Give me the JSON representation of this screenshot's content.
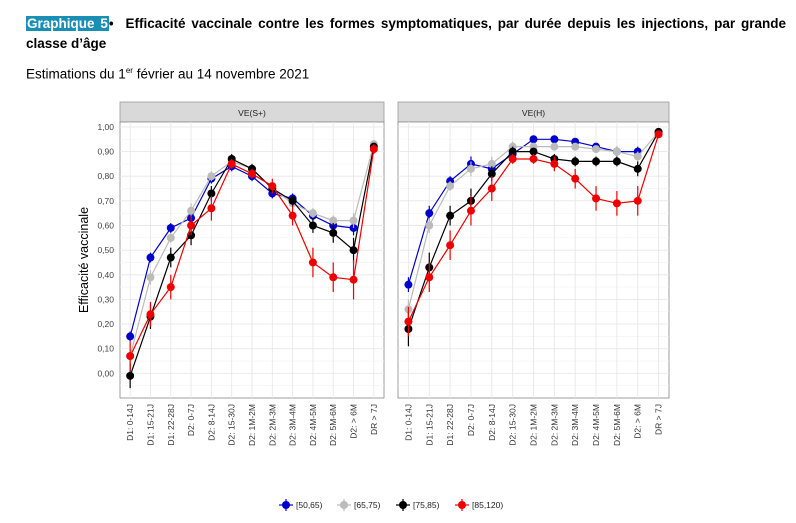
{
  "header": {
    "label": "Graphique 5",
    "bullet": "•",
    "title": "Efficacité vaccinale contre les formes symptomatiques, par durée depuis les injections, par grande classe d’âge"
  },
  "subtitle": {
    "prefix": "Estimations du 1",
    "sup": "er",
    "suffix": " février au 14 novembre 2021"
  },
  "colors": {
    "grid": "#e8e8e8",
    "strip": "#d9d9d9"
  },
  "chart_data": {
    "type": "line",
    "ylabel": "Efficacité vaccinale",
    "ylim": [
      -0.1,
      1.02
    ],
    "yticks": [
      0.0,
      0.1,
      0.2,
      0.3,
      0.4,
      0.5,
      0.6,
      0.7,
      0.8,
      0.9,
      1.0
    ],
    "ytick_labels": [
      "0,00",
      "0,10",
      "0,20",
      "0,30",
      "0,40",
      "0,50",
      "0,60",
      "0,70",
      "0,80",
      "0,90",
      "1,00"
    ],
    "categories": [
      "D1: 0-14J",
      "D1: 15-21J",
      "D1: 22-28J",
      "D2: 0-7J",
      "D2: 8-14J",
      "D2: 15-30J",
      "D2: 1M-2M",
      "D2: 2M-3M",
      "D2: 3M-4M",
      "D2: 4M-5M",
      "D2: 5M-6M",
      "D2: > 6M",
      "DR > 7J"
    ],
    "legend_position": "bottom",
    "grid": true,
    "panels": [
      {
        "title": "VE(S+)",
        "series": [
          {
            "name": "[50,65)",
            "color": "#0000cc",
            "values": [
              0.15,
              0.47,
              0.59,
              0.63,
              0.79,
              0.84,
              0.8,
              0.73,
              0.71,
              0.64,
              0.6,
              0.59,
              null
            ],
            "lo": [
              0.13,
              0.45,
              0.57,
              0.6,
              0.77,
              0.82,
              0.78,
              0.71,
              0.69,
              0.62,
              0.58,
              0.56,
              null
            ],
            "hi": [
              0.17,
              0.49,
              0.61,
              0.66,
              0.81,
              0.86,
              0.82,
              0.75,
              0.73,
              0.66,
              0.62,
              0.62,
              null
            ]
          },
          {
            "name": "[65,75)",
            "color": "#bbbbbb",
            "values": [
              0.07,
              0.39,
              0.55,
              0.66,
              0.8,
              0.86,
              0.83,
              0.75,
              0.69,
              0.65,
              0.62,
              0.62,
              0.93
            ],
            "lo": [
              0.04,
              0.36,
              0.53,
              0.63,
              0.78,
              0.84,
              0.81,
              0.73,
              0.67,
              0.63,
              0.6,
              0.59,
              0.92
            ],
            "hi": [
              0.1,
              0.42,
              0.57,
              0.69,
              0.82,
              0.88,
              0.85,
              0.77,
              0.71,
              0.67,
              0.64,
              0.65,
              0.94
            ]
          },
          {
            "name": "[75,85)",
            "color": "#000000",
            "values": [
              -0.01,
              0.23,
              0.47,
              0.56,
              0.73,
              0.87,
              0.83,
              0.75,
              0.7,
              0.6,
              0.57,
              0.5,
              0.92
            ],
            "lo": [
              -0.06,
              0.18,
              0.43,
              0.52,
              0.7,
              0.85,
              0.81,
              0.73,
              0.68,
              0.57,
              0.53,
              0.45,
              0.91
            ],
            "hi": [
              0.04,
              0.28,
              0.51,
              0.6,
              0.76,
              0.89,
              0.85,
              0.77,
              0.72,
              0.63,
              0.61,
              0.55,
              0.93
            ]
          },
          {
            "name": "[85,120)",
            "color": "#ee0000",
            "values": [
              0.07,
              0.24,
              0.35,
              0.6,
              0.67,
              0.85,
              0.81,
              0.76,
              0.64,
              0.45,
              0.39,
              0.38,
              0.91
            ],
            "lo": [
              0.01,
              0.19,
              0.3,
              0.56,
              0.62,
              0.83,
              0.79,
              0.73,
              0.6,
              0.39,
              0.33,
              0.3,
              0.89
            ],
            "hi": [
              0.13,
              0.29,
              0.4,
              0.64,
              0.72,
              0.87,
              0.83,
              0.79,
              0.68,
              0.51,
              0.45,
              0.46,
              0.93
            ]
          }
        ]
      },
      {
        "title": "VE(H)",
        "series": [
          {
            "name": "[50,65)",
            "color": "#0000cc",
            "values": [
              0.36,
              0.65,
              0.78,
              0.85,
              0.83,
              0.89,
              0.95,
              0.95,
              0.94,
              0.92,
              0.9,
              0.9,
              null
            ],
            "lo": [
              0.33,
              0.62,
              0.76,
              0.82,
              0.8,
              0.87,
              0.94,
              0.94,
              0.93,
              0.91,
              0.88,
              0.88,
              null
            ],
            "hi": [
              0.39,
              0.68,
              0.8,
              0.88,
              0.86,
              0.91,
              0.96,
              0.96,
              0.95,
              0.93,
              0.92,
              0.92,
              null
            ]
          },
          {
            "name": "[65,75)",
            "color": "#bbbbbb",
            "values": [
              0.26,
              0.6,
              0.76,
              0.83,
              0.85,
              0.92,
              0.92,
              0.92,
              0.92,
              0.91,
              0.9,
              0.88,
              0.98
            ],
            "lo": [
              0.22,
              0.57,
              0.74,
              0.8,
              0.82,
              0.9,
              0.91,
              0.91,
              0.91,
              0.9,
              0.88,
              0.86,
              0.97
            ],
            "hi": [
              0.3,
              0.63,
              0.78,
              0.86,
              0.88,
              0.94,
              0.93,
              0.93,
              0.93,
              0.92,
              0.92,
              0.9,
              0.99
            ]
          },
          {
            "name": "[75,85)",
            "color": "#000000",
            "values": [
              0.18,
              0.43,
              0.64,
              0.7,
              0.81,
              0.9,
              0.9,
              0.87,
              0.86,
              0.86,
              0.86,
              0.83,
              0.98
            ],
            "lo": [
              0.11,
              0.37,
              0.6,
              0.65,
              0.78,
              0.88,
              0.89,
              0.85,
              0.84,
              0.84,
              0.84,
              0.8,
              0.97
            ],
            "hi": [
              0.25,
              0.49,
              0.68,
              0.75,
              0.84,
              0.92,
              0.91,
              0.89,
              0.88,
              0.88,
              0.88,
              0.86,
              0.99
            ]
          },
          {
            "name": "[85,120)",
            "color": "#ee0000",
            "values": [
              0.21,
              0.39,
              0.52,
              0.66,
              0.75,
              0.87,
              0.87,
              0.85,
              0.79,
              0.71,
              0.69,
              0.7,
              0.97
            ],
            "lo": [
              0.15,
              0.33,
              0.46,
              0.6,
              0.7,
              0.85,
              0.85,
              0.82,
              0.75,
              0.66,
              0.64,
              0.64,
              0.96
            ],
            "hi": [
              0.27,
              0.45,
              0.58,
              0.72,
              0.8,
              0.89,
              0.89,
              0.88,
              0.83,
              0.76,
              0.74,
              0.76,
              0.98
            ]
          }
        ]
      }
    ]
  }
}
